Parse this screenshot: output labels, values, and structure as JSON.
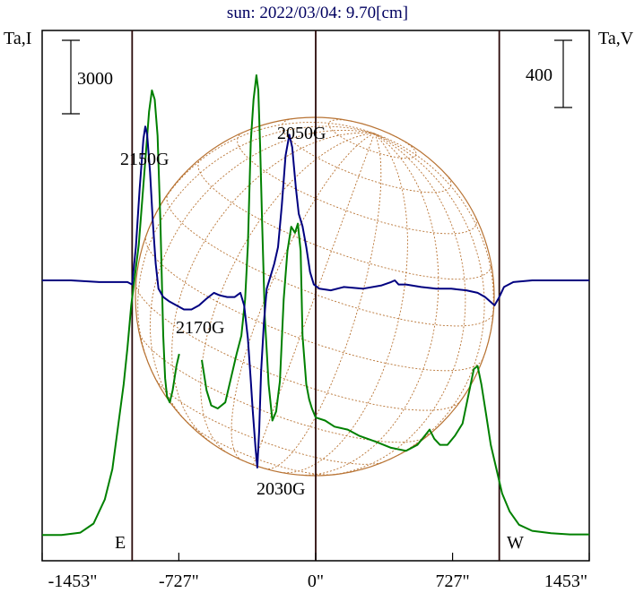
{
  "chart_data": {
    "type": "line",
    "title": "sun: 2022/03/04: 9.70[cm]",
    "left_axis_label": "Ta,I",
    "right_axis_label": "Ta,V",
    "scale_bar_left": "3000",
    "scale_bar_right": "400",
    "xlim": [
      -1453,
      1453
    ],
    "x_ticks": [
      {
        "value": -1453,
        "label": "-1453\""
      },
      {
        "value": -727,
        "label": "-727\""
      },
      {
        "value": 0,
        "label": "0\""
      },
      {
        "value": 727,
        "label": "727\""
      },
      {
        "value": 1453,
        "label": "1453\""
      }
    ],
    "limb_labels": {
      "east": "E",
      "west": "W"
    },
    "limb_positions": [
      -975,
      975
    ],
    "annotations": [
      {
        "text": "2150G",
        "x": -905
      },
      {
        "text": "2050G",
        "x": -60
      },
      {
        "text": "2170G",
        "x": -600
      },
      {
        "text": "2030G",
        "x": -36
      }
    ],
    "series": [
      {
        "color": "#008000",
        "points": [
          [
            -1453,
            1
          ],
          [
            -1350,
            1
          ],
          [
            -1250,
            5
          ],
          [
            -1180,
            20
          ],
          [
            -1120,
            60
          ],
          [
            -1080,
            110
          ],
          [
            -1050,
            180
          ],
          [
            -1020,
            250
          ],
          [
            -1000,
            310
          ],
          [
            -980,
            380
          ],
          [
            -960,
            430
          ],
          [
            -940,
            480
          ],
          [
            -920,
            560
          ],
          [
            -900,
            640
          ],
          [
            -885,
            700
          ],
          [
            -870,
            735
          ],
          [
            -855,
            720
          ],
          [
            -840,
            660
          ],
          [
            -825,
            520
          ],
          [
            -810,
            330
          ],
          [
            -800,
            260
          ],
          [
            -790,
            230
          ],
          [
            -775,
            220
          ],
          [
            -760,
            240
          ],
          [
            -740,
            280
          ],
          [
            -725,
            300
          ],
          [
            null,
            null
          ],
          [
            -605,
            290
          ],
          [
            -580,
            240
          ],
          [
            -555,
            215
          ],
          [
            -520,
            210
          ],
          [
            -480,
            220
          ],
          [
            -450,
            260
          ],
          [
            -420,
            300
          ],
          [
            -395,
            330
          ],
          [
            -375,
            390
          ],
          [
            -360,
            480
          ],
          [
            -345,
            650
          ],
          [
            -330,
            720
          ],
          [
            -315,
            760
          ],
          [
            -305,
            735
          ],
          [
            -295,
            640
          ],
          [
            -285,
            520
          ],
          [
            -270,
            360
          ],
          [
            -250,
            250
          ],
          [
            -230,
            190
          ],
          [
            -210,
            205
          ],
          [
            -190,
            255
          ],
          [
            -170,
            390
          ],
          [
            -150,
            470
          ],
          [
            -130,
            510
          ],
          [
            -110,
            500
          ],
          [
            -95,
            515
          ],
          [
            -80,
            470
          ],
          [
            -70,
            330
          ],
          [
            -50,
            250
          ],
          [
            -35,
            225
          ],
          [
            -20,
            210
          ],
          [
            0,
            195
          ],
          [
            50,
            190
          ],
          [
            100,
            180
          ],
          [
            170,
            175
          ],
          [
            230,
            165
          ],
          [
            320,
            155
          ],
          [
            400,
            145
          ],
          [
            480,
            140
          ],
          [
            540,
            150
          ],
          [
            580,
            165
          ],
          [
            605,
            175
          ],
          [
            630,
            160
          ],
          [
            660,
            150
          ],
          [
            700,
            150
          ],
          [
            740,
            165
          ],
          [
            780,
            185
          ],
          [
            810,
            230
          ],
          [
            840,
            275
          ],
          [
            860,
            280
          ],
          [
            880,
            250
          ],
          [
            905,
            200
          ],
          [
            930,
            150
          ],
          [
            960,
            110
          ],
          [
            990,
            70
          ],
          [
            1030,
            40
          ],
          [
            1080,
            18
          ],
          [
            1150,
            8
          ],
          [
            1250,
            4
          ],
          [
            1350,
            2
          ],
          [
            1453,
            2
          ]
        ]
      },
      {
        "color": "#000080",
        "points": [
          [
            -1453,
            0
          ],
          [
            -1300,
            0
          ],
          [
            -1150,
            -2
          ],
          [
            -1000,
            -2
          ],
          [
            -975,
            -5
          ],
          [
            -955,
            40
          ],
          [
            -935,
            110
          ],
          [
            -915,
            170
          ],
          [
            -905,
            185
          ],
          [
            -895,
            175
          ],
          [
            -880,
            130
          ],
          [
            -865,
            70
          ],
          [
            -850,
            20
          ],
          [
            -835,
            -10
          ],
          [
            -810,
            -20
          ],
          [
            -780,
            -25
          ],
          [
            -740,
            -30
          ],
          [
            -700,
            -35
          ],
          [
            -660,
            -35
          ],
          [
            -620,
            -30
          ],
          [
            -580,
            -22
          ],
          [
            -540,
            -15
          ],
          [
            -510,
            -18
          ],
          [
            -470,
            -20
          ],
          [
            -430,
            -20
          ],
          [
            -400,
            -15
          ],
          [
            -380,
            -30
          ],
          [
            -360,
            -70
          ],
          [
            -345,
            -120
          ],
          [
            -335,
            -155
          ],
          [
            -320,
            -200
          ],
          [
            -310,
            -225
          ],
          [
            -300,
            -180
          ],
          [
            -290,
            -110
          ],
          [
            -275,
            -50
          ],
          [
            -260,
            -10
          ],
          [
            -240,
            5
          ],
          [
            -220,
            20
          ],
          [
            -200,
            40
          ],
          [
            -180,
            90
          ],
          [
            -160,
            150
          ],
          [
            -140,
            175
          ],
          [
            -125,
            160
          ],
          [
            -105,
            110
          ],
          [
            -90,
            80
          ],
          [
            -70,
            65
          ],
          [
            -50,
            40
          ],
          [
            -30,
            10
          ],
          [
            -10,
            -5
          ],
          [
            20,
            -10
          ],
          [
            80,
            -12
          ],
          [
            150,
            -8
          ],
          [
            250,
            -10
          ],
          [
            350,
            -6
          ],
          [
            400,
            -2
          ],
          [
            420,
            0
          ],
          [
            440,
            -5
          ],
          [
            480,
            -5
          ],
          [
            560,
            -8
          ],
          [
            640,
            -10
          ],
          [
            720,
            -10
          ],
          [
            800,
            -12
          ],
          [
            860,
            -15
          ],
          [
            900,
            -20
          ],
          [
            950,
            -30
          ],
          [
            975,
            -20
          ],
          [
            1000,
            -8
          ],
          [
            1050,
            -2
          ],
          [
            1150,
            0
          ],
          [
            1300,
            0
          ],
          [
            1453,
            0
          ]
        ]
      }
    ]
  }
}
